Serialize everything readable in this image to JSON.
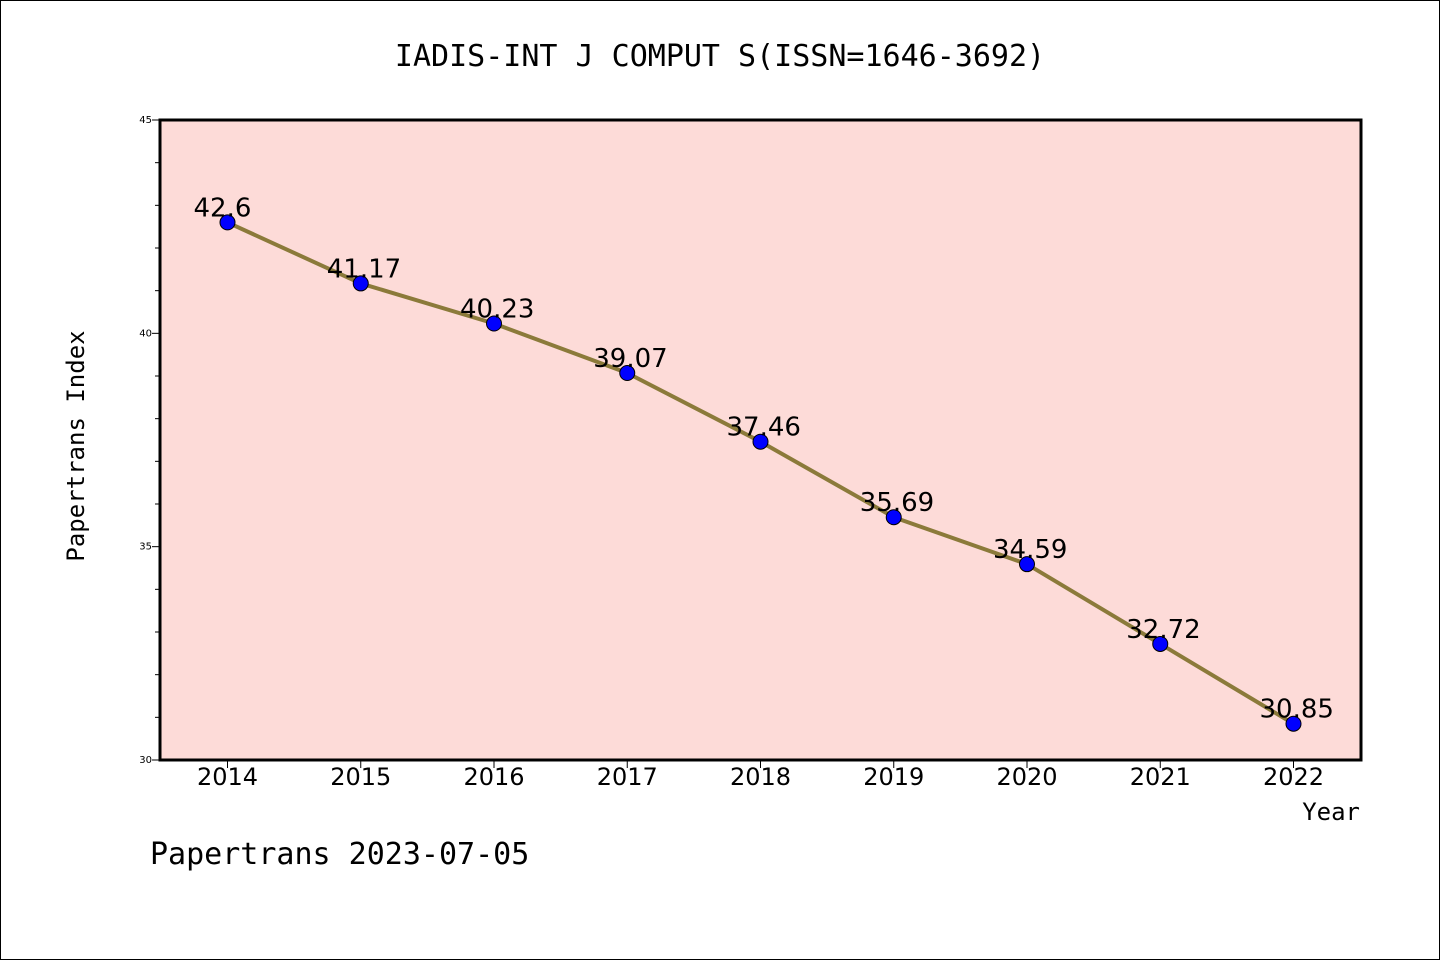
{
  "chart_data": {
    "type": "line",
    "title": "IADIS-INT J COMPUT S(ISSN=1646-3692)",
    "xlabel": "Year",
    "ylabel": "Papertrans Index",
    "categories": [
      "2014",
      "2015",
      "2016",
      "2017",
      "2018",
      "2019",
      "2020",
      "2021",
      "2022"
    ],
    "series": [
      {
        "values": [
          42.6,
          41.17,
          40.23,
          39.07,
          37.46,
          35.69,
          34.59,
          32.72,
          30.85
        ]
      }
    ],
    "data_labels": [
      "42.6",
      "41.17",
      "40.23",
      "39.07",
      "37.46",
      "35.69",
      "34.59",
      "32.72",
      "30.85"
    ],
    "ylim": [
      30,
      45
    ],
    "yticks": [
      "30",
      "35",
      "40",
      "45"
    ],
    "line_color": "#8b7a3a",
    "marker_color": "#0000ff",
    "plot_background": "#fddbd8",
    "grid": false,
    "legend": "none"
  },
  "footer": "Papertrans 2023-07-05"
}
